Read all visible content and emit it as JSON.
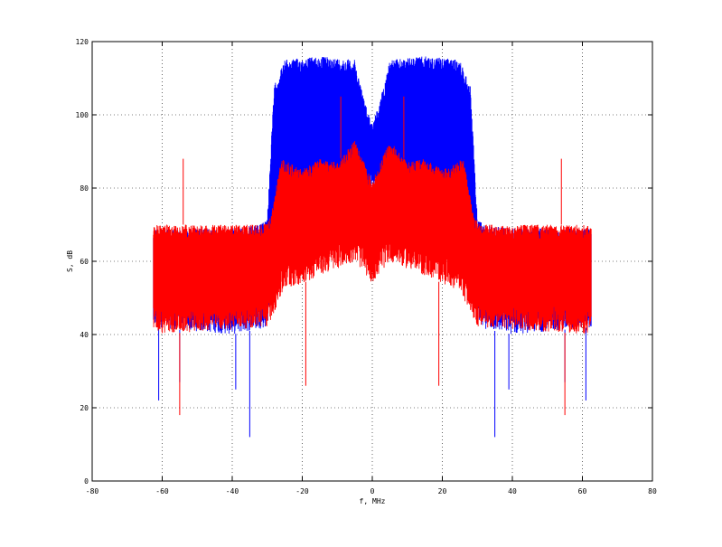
{
  "chart_data": {
    "type": "line",
    "title": "",
    "xlabel": "f, MHz",
    "ylabel": "S, dB",
    "xlim": [
      -80,
      80
    ],
    "ylim": [
      0,
      120
    ],
    "x_ticks": [
      -80,
      -60,
      -40,
      -20,
      0,
      20,
      40,
      60,
      80
    ],
    "y_ticks": [
      0,
      20,
      40,
      60,
      80,
      100,
      120
    ],
    "x_tick_labels": [
      "-80",
      "-60",
      "-40",
      "-20",
      "0",
      "20",
      "40",
      "60",
      "80"
    ],
    "y_tick_labels": [
      "0",
      "20",
      "40",
      "60",
      "80",
      "100",
      "120"
    ],
    "grid": true,
    "grid_style": "dotted",
    "legend": "none",
    "series": [
      {
        "color": "#0000ff",
        "envelope": {
          "f_range_MHz": [
            -62.5,
            62.5
          ],
          "upper_dB": [
            [
              -62.5,
              69
            ],
            [
              -40,
              69
            ],
            [
              -32,
              70
            ],
            [
              -30,
              72
            ],
            [
              -28,
              108
            ],
            [
              -25,
              115
            ],
            [
              -15,
              116
            ],
            [
              -5,
              115
            ],
            [
              -2,
              103
            ],
            [
              0,
              98
            ],
            [
              2,
              103
            ],
            [
              5,
              115
            ],
            [
              15,
              116
            ],
            [
              25,
              115
            ],
            [
              28,
              108
            ],
            [
              30,
              72
            ],
            [
              32,
              70
            ],
            [
              40,
              69
            ],
            [
              62.5,
              69
            ]
          ],
          "lower_dB": [
            [
              -62.5,
              42
            ],
            [
              -40,
              40
            ],
            [
              -30,
              42
            ],
            [
              -28,
              62
            ],
            [
              -20,
              74
            ],
            [
              -5,
              78
            ],
            [
              0,
              80
            ],
            [
              5,
              78
            ],
            [
              20,
              74
            ],
            [
              28,
              62
            ],
            [
              30,
              42
            ],
            [
              40,
              40
            ],
            [
              62.5,
              42
            ]
          ],
          "spikes_dB": [
            [
              -61,
              22
            ],
            [
              -55,
              27
            ],
            [
              -39,
              25
            ],
            [
              -35,
              12
            ],
            [
              35,
              12
            ],
            [
              39,
              25
            ],
            [
              55,
              27
            ],
            [
              61,
              22
            ]
          ]
        }
      },
      {
        "color": "#ff0000",
        "envelope": {
          "f_range_MHz": [
            -62.5,
            62.5
          ],
          "upper_dB": [
            [
              -62.5,
              70
            ],
            [
              -31,
              70
            ],
            [
              -29,
              72
            ],
            [
              -26,
              88
            ],
            [
              -20,
              85
            ],
            [
              -15,
              88
            ],
            [
              -10,
              87
            ],
            [
              -5,
              93
            ],
            [
              -1,
              84
            ],
            [
              0,
              82
            ],
            [
              1,
              84
            ],
            [
              5,
              93
            ],
            [
              10,
              87
            ],
            [
              15,
              88
            ],
            [
              20,
              85
            ],
            [
              26,
              88
            ],
            [
              29,
              72
            ],
            [
              31,
              70
            ],
            [
              62.5,
              70
            ]
          ],
          "lower_dB": [
            [
              -62.5,
              40
            ],
            [
              -30,
              42
            ],
            [
              -25,
              52
            ],
            [
              -15,
              56
            ],
            [
              -5,
              60
            ],
            [
              0,
              54
            ],
            [
              5,
              60
            ],
            [
              15,
              56
            ],
            [
              25,
              52
            ],
            [
              30,
              42
            ],
            [
              62.5,
              40
            ]
          ],
          "spikes_dB": [
            [
              -54,
              88
            ],
            [
              54,
              88
            ],
            [
              -9,
              105
            ],
            [
              9,
              105
            ],
            [
              -55,
              18
            ],
            [
              55,
              18
            ],
            [
              -19,
              26
            ],
            [
              19,
              26
            ]
          ]
        }
      }
    ]
  }
}
